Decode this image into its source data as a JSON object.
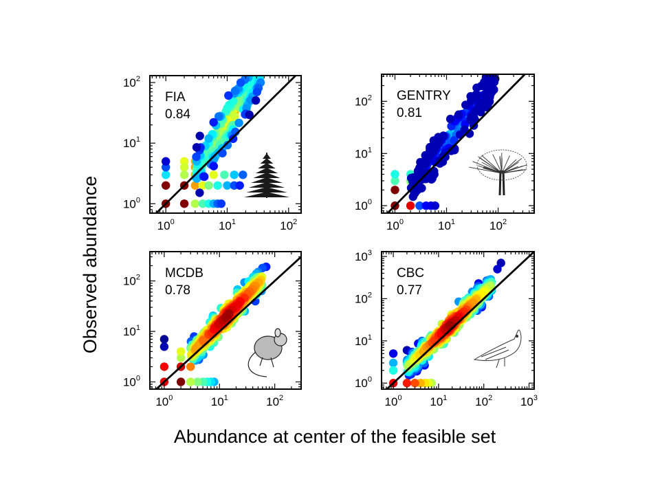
{
  "figure": {
    "xlabel": "Abundance at center of the feasible set",
    "ylabel": "Observed abundance"
  },
  "chart_data": [
    {
      "type": "scatter",
      "label": "FIA",
      "value": "0.84",
      "scale": "log",
      "icon": "pine-tree-icon",
      "xlim": [
        0.55,
        160
      ],
      "ylim": [
        0.7,
        130
      ],
      "x_ticks": [
        {
          "base": "10",
          "exp": "0",
          "value": 1
        },
        {
          "base": "10",
          "exp": "1",
          "value": 10
        },
        {
          "base": "10",
          "exp": "2",
          "value": 100
        }
      ],
      "y_ticks": [
        {
          "base": "10",
          "exp": "0",
          "value": 1
        },
        {
          "base": "10",
          "exp": "1",
          "value": 10
        },
        {
          "base": "10",
          "exp": "2",
          "value": 100
        }
      ],
      "one_to_one_line": true,
      "diagonal_color": "#000000",
      "points": [
        {
          "x": 1,
          "y": 1,
          "c": 1.0
        },
        {
          "x": 2,
          "y": 1,
          "c": 1.0
        },
        {
          "x": 3,
          "y": 1,
          "c": 0.55
        },
        {
          "x": 4,
          "y": 1,
          "c": 0.45
        },
        {
          "x": 5,
          "y": 1,
          "c": 0.4
        },
        {
          "x": 6,
          "y": 1,
          "c": 0.3
        },
        {
          "x": 7,
          "y": 1,
          "c": 0.22
        },
        {
          "x": 8,
          "y": 1,
          "c": 0.18
        },
        {
          "x": 1,
          "y": 2,
          "c": 1.0
        },
        {
          "x": 2,
          "y": 2,
          "c": 1.0
        },
        {
          "x": 3,
          "y": 2,
          "c": 0.72
        },
        {
          "x": 4,
          "y": 2,
          "c": 0.6
        },
        {
          "x": 5,
          "y": 2,
          "c": 0.5
        },
        {
          "x": 7,
          "y": 2,
          "c": 0.4
        },
        {
          "x": 10,
          "y": 2,
          "c": 0.3
        },
        {
          "x": 13,
          "y": 2,
          "c": 0.2
        },
        {
          "x": 16,
          "y": 2,
          "c": 0.15
        },
        {
          "x": 1,
          "y": 3,
          "c": 0.35
        },
        {
          "x": 2,
          "y": 3,
          "c": 0.55
        },
        {
          "x": 3,
          "y": 3,
          "c": 0.7
        },
        {
          "x": 4,
          "y": 3,
          "c": 0.68
        },
        {
          "x": 6,
          "y": 3,
          "c": 0.6
        },
        {
          "x": 9,
          "y": 3,
          "c": 0.45
        },
        {
          "x": 13,
          "y": 3,
          "c": 0.32
        },
        {
          "x": 18,
          "y": 3,
          "c": 0.22
        },
        {
          "x": 1,
          "y": 4,
          "c": 0.2
        },
        {
          "x": 2,
          "y": 4,
          "c": 0.58
        },
        {
          "x": 3,
          "y": 4,
          "c": 0.72
        },
        {
          "x": 1,
          "y": 5,
          "c": 0.08
        },
        {
          "x": 2,
          "y": 5,
          "c": 0.6
        },
        {
          "x": 3,
          "y": 5,
          "c": 0.7
        }
      ],
      "cloud": {
        "x_min": 3,
        "x_max": 35,
        "slope": 1.55,
        "offset": -0.22,
        "spread": 0.28,
        "n": 260,
        "color_max": 0.75,
        "seed": 11
      }
    },
    {
      "type": "scatter",
      "label": "GENTRY",
      "value": "0.81",
      "scale": "log",
      "icon": "oak-tree-icon",
      "xlim": [
        0.55,
        500
      ],
      "ylim": [
        0.72,
        330
      ],
      "x_ticks": [
        {
          "base": "10",
          "exp": "0",
          "value": 1
        },
        {
          "base": "10",
          "exp": "1",
          "value": 10
        },
        {
          "base": "10",
          "exp": "2",
          "value": 100
        }
      ],
      "y_ticks": [
        {
          "base": "10",
          "exp": "0",
          "value": 1
        },
        {
          "base": "10",
          "exp": "1",
          "value": 10
        },
        {
          "base": "10",
          "exp": "2",
          "value": 100
        }
      ],
      "one_to_one_line": true,
      "diagonal_color": "#000000",
      "points": [
        {
          "x": 1,
          "y": 1,
          "c": 1.0
        },
        {
          "x": 2,
          "y": 1,
          "c": 0.9
        },
        {
          "x": 3,
          "y": 1,
          "c": 0.2
        },
        {
          "x": 4,
          "y": 1,
          "c": 0.12
        },
        {
          "x": 5,
          "y": 1,
          "c": 0.1
        },
        {
          "x": 6,
          "y": 1,
          "c": 0.08
        },
        {
          "x": 1,
          "y": 2,
          "c": 1.0
        },
        {
          "x": 1,
          "y": 3,
          "c": 0.45
        },
        {
          "x": 1,
          "y": 4,
          "c": 0.4
        },
        {
          "x": 2,
          "y": 3,
          "c": 0.5
        },
        {
          "x": 2,
          "y": 4,
          "c": 0.42
        }
      ],
      "cloud": {
        "x_min": 2,
        "x_max": 90,
        "slope": 1.28,
        "offset": -0.05,
        "spread": 0.24,
        "n": 320,
        "color_max": 0.45,
        "seed": 29
      }
    },
    {
      "type": "scatter",
      "label": "MCDB",
      "value": "0.78",
      "scale": "log",
      "icon": "mouse-icon",
      "xlim": [
        0.55,
        300
      ],
      "ylim": [
        0.72,
        380
      ],
      "x_ticks": [
        {
          "base": "10",
          "exp": "0",
          "value": 1
        },
        {
          "base": "10",
          "exp": "1",
          "value": 10
        },
        {
          "base": "10",
          "exp": "2",
          "value": 100
        }
      ],
      "y_ticks": [
        {
          "base": "10",
          "exp": "0",
          "value": 1
        },
        {
          "base": "10",
          "exp": "1",
          "value": 10
        },
        {
          "base": "10",
          "exp": "2",
          "value": 100
        }
      ],
      "one_to_one_line": true,
      "diagonal_color": "#000000",
      "points": [
        {
          "x": 1,
          "y": 1,
          "c": 0.9
        },
        {
          "x": 2,
          "y": 1,
          "c": 1.0
        },
        {
          "x": 3,
          "y": 1,
          "c": 0.55
        },
        {
          "x": 4,
          "y": 1,
          "c": 0.5
        },
        {
          "x": 5,
          "y": 1,
          "c": 0.45
        },
        {
          "x": 6,
          "y": 1,
          "c": 0.4
        },
        {
          "x": 7,
          "y": 1,
          "c": 0.35
        },
        {
          "x": 8,
          "y": 1,
          "c": 0.3
        },
        {
          "x": 1,
          "y": 2,
          "c": 0.88
        },
        {
          "x": 2,
          "y": 2,
          "c": 0.92
        },
        {
          "x": 3,
          "y": 2,
          "c": 0.75
        },
        {
          "x": 1,
          "y": 5,
          "c": 0.05
        },
        {
          "x": 1,
          "y": 7,
          "c": 0.02
        },
        {
          "x": 2,
          "y": 3,
          "c": 0.55
        },
        {
          "x": 2,
          "y": 4,
          "c": 0.6
        },
        {
          "x": 50,
          "y": 150,
          "c": 0.25
        },
        {
          "x": 60,
          "y": 180,
          "c": 0.2
        },
        {
          "x": 70,
          "y": 190,
          "c": 0.15
        }
      ],
      "cloud": {
        "x_min": 3,
        "x_max": 60,
        "slope": 1.15,
        "offset": 0.0,
        "spread": 0.2,
        "n": 360,
        "color_max": 1.0,
        "seed": 47
      }
    },
    {
      "type": "scatter",
      "label": "CBC",
      "value": "0.77",
      "scale": "log",
      "icon": "bird-icon",
      "xlim": [
        0.55,
        1300
      ],
      "ylim": [
        0.72,
        1300
      ],
      "x_ticks": [
        {
          "base": "10",
          "exp": "0",
          "value": 1
        },
        {
          "base": "10",
          "exp": "1",
          "value": 10
        },
        {
          "base": "10",
          "exp": "2",
          "value": 100
        },
        {
          "base": "10",
          "exp": "3",
          "value": 1000
        }
      ],
      "y_ticks": [
        {
          "base": "10",
          "exp": "0",
          "value": 1
        },
        {
          "base": "10",
          "exp": "1",
          "value": 10
        },
        {
          "base": "10",
          "exp": "2",
          "value": 100
        },
        {
          "base": "10",
          "exp": "3",
          "value": 1000
        }
      ],
      "one_to_one_line": true,
      "diagonal_color": "#000000",
      "points": [
        {
          "x": 1,
          "y": 1,
          "c": 0.9
        },
        {
          "x": 2,
          "y": 1,
          "c": 0.85
        },
        {
          "x": 3,
          "y": 1,
          "c": 0.8
        },
        {
          "x": 4,
          "y": 1,
          "c": 0.7
        },
        {
          "x": 5,
          "y": 1,
          "c": 0.65
        },
        {
          "x": 6,
          "y": 1,
          "c": 0.6
        },
        {
          "x": 7,
          "y": 1,
          "c": 0.55
        },
        {
          "x": 1,
          "y": 2,
          "c": 0.4
        },
        {
          "x": 1,
          "y": 3,
          "c": 0.3
        },
        {
          "x": 1,
          "y": 5,
          "c": 0.1
        },
        {
          "x": 2,
          "y": 6,
          "c": 0.05
        },
        {
          "x": 200,
          "y": 500,
          "c": 0.08
        },
        {
          "x": 240,
          "y": 700,
          "c": 0.05
        }
      ],
      "cloud": {
        "x_min": 2,
        "x_max": 150,
        "slope": 1.05,
        "offset": 0.05,
        "spread": 0.22,
        "n": 420,
        "color_max": 1.0,
        "seed": 83
      }
    }
  ]
}
